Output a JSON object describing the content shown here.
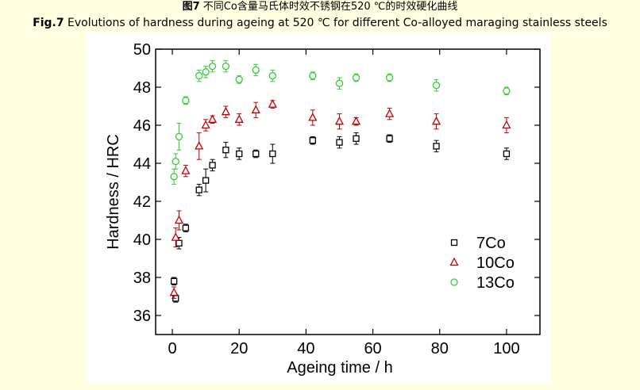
{
  "caption": {
    "cn_prefix": "图7",
    "cn_text": " 不同Co含量马氏体时效不锈钢在520 ℃的时效硬化曲线",
    "en_prefix": "Fig.7",
    "en_text": " Evolutions of hardness during ageing at 520 ℃ for different Co-alloyed maraging stainless steels"
  },
  "chart_data": {
    "type": "scatter",
    "title": "",
    "xlabel": "Ageing time / h",
    "ylabel": "Hardness / HRC",
    "xlim": [
      -5,
      110
    ],
    "ylim": [
      35,
      50
    ],
    "xticks": [
      0,
      20,
      40,
      60,
      80,
      100
    ],
    "yticks": [
      36,
      38,
      40,
      42,
      44,
      46,
      48,
      50
    ],
    "grid": false,
    "legend_position": "bottom-right",
    "series": [
      {
        "name": "7Co",
        "marker": "square",
        "color": "#000000",
        "points": [
          {
            "x": 0.5,
            "y": 37.8,
            "err": 0.2
          },
          {
            "x": 1,
            "y": 36.9,
            "err": 0.2
          },
          {
            "x": 2,
            "y": 39.8,
            "err": 0.3
          },
          {
            "x": 4,
            "y": 40.6,
            "err": 0.2
          },
          {
            "x": 8,
            "y": 42.6,
            "err": 0.3
          },
          {
            "x": 10,
            "y": 43.1,
            "err": 0.6
          },
          {
            "x": 12,
            "y": 43.9,
            "err": 0.3
          },
          {
            "x": 16,
            "y": 44.7,
            "err": 0.4
          },
          {
            "x": 20,
            "y": 44.5,
            "err": 0.3
          },
          {
            "x": 25,
            "y": 44.5,
            "err": 0.2
          },
          {
            "x": 30,
            "y": 44.5,
            "err": 0.5
          },
          {
            "x": 42,
            "y": 45.2,
            "err": 0.2
          },
          {
            "x": 50,
            "y": 45.1,
            "err": 0.3
          },
          {
            "x": 55,
            "y": 45.3,
            "err": 0.3
          },
          {
            "x": 65,
            "y": 45.3,
            "err": 0.2
          },
          {
            "x": 79,
            "y": 44.9,
            "err": 0.3
          },
          {
            "x": 100,
            "y": 44.5,
            "err": 0.3
          }
        ]
      },
      {
        "name": "10Co",
        "marker": "triangle",
        "color": "#c00000",
        "points": [
          {
            "x": 0.5,
            "y": 37.2,
            "err": 0.3
          },
          {
            "x": 1,
            "y": 40.1,
            "err": 0.5
          },
          {
            "x": 2,
            "y": 41.0,
            "err": 0.5
          },
          {
            "x": 4,
            "y": 43.6,
            "err": 0.3
          },
          {
            "x": 8,
            "y": 44.9,
            "err": 0.7
          },
          {
            "x": 10,
            "y": 46.0,
            "err": 0.3
          },
          {
            "x": 12,
            "y": 46.3,
            "err": 0.2
          },
          {
            "x": 16,
            "y": 46.7,
            "err": 0.3
          },
          {
            "x": 20,
            "y": 46.3,
            "err": 0.3
          },
          {
            "x": 25,
            "y": 46.8,
            "err": 0.4
          },
          {
            "x": 30,
            "y": 47.1,
            "err": 0.2
          },
          {
            "x": 42,
            "y": 46.4,
            "err": 0.4
          },
          {
            "x": 50,
            "y": 46.2,
            "err": 0.4
          },
          {
            "x": 55,
            "y": 46.2,
            "err": 0.2
          },
          {
            "x": 65,
            "y": 46.6,
            "err": 0.3
          },
          {
            "x": 79,
            "y": 46.2,
            "err": 0.4
          },
          {
            "x": 100,
            "y": 46.0,
            "err": 0.4
          }
        ]
      },
      {
        "name": "13Co",
        "marker": "circle",
        "color": "#33cc33",
        "points": [
          {
            "x": 0.5,
            "y": 43.3,
            "err": 0.4
          },
          {
            "x": 1,
            "y": 44.1,
            "err": 0.4
          },
          {
            "x": 2,
            "y": 45.4,
            "err": 0.7
          },
          {
            "x": 4,
            "y": 47.3,
            "err": 0.2
          },
          {
            "x": 8,
            "y": 48.6,
            "err": 0.3
          },
          {
            "x": 10,
            "y": 48.8,
            "err": 0.3
          },
          {
            "x": 12,
            "y": 49.1,
            "err": 0.3
          },
          {
            "x": 16,
            "y": 49.1,
            "err": 0.3
          },
          {
            "x": 20,
            "y": 48.4,
            "err": 0.2
          },
          {
            "x": 25,
            "y": 48.9,
            "err": 0.3
          },
          {
            "x": 30,
            "y": 48.6,
            "err": 0.3
          },
          {
            "x": 42,
            "y": 48.6,
            "err": 0.2
          },
          {
            "x": 50,
            "y": 48.2,
            "err": 0.3
          },
          {
            "x": 55,
            "y": 48.5,
            "err": 0.2
          },
          {
            "x": 65,
            "y": 48.5,
            "err": 0.2
          },
          {
            "x": 79,
            "y": 48.1,
            "err": 0.3
          },
          {
            "x": 100,
            "y": 47.8,
            "err": 0.2
          }
        ]
      }
    ]
  }
}
